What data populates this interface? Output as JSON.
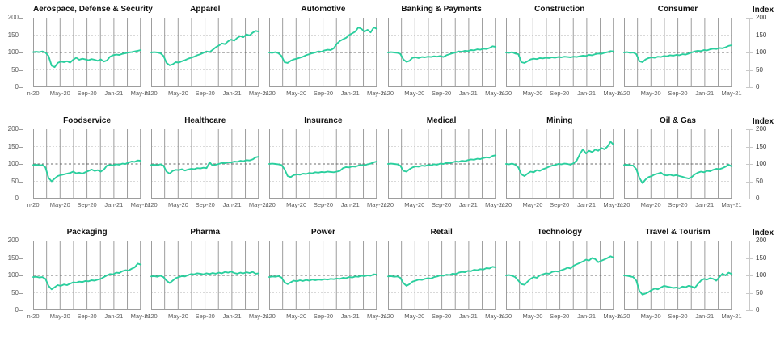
{
  "right_axis_title": "Index",
  "style": {
    "line_color": "#2BCF9E",
    "grid_vertical_color": "#9d9d9d",
    "grid_light_color": "#d9d9d9",
    "ref_line_color": "#6b6b6b",
    "tick_label_color": "#595959"
  },
  "chart_data": {
    "type": "line",
    "note": "small-multiples of weekly sector indices, Jan-2020 to May-2021, baseline 100",
    "ylim": [
      0,
      200
    ],
    "y_ticks": [
      "200",
      "150",
      "100",
      "50",
      "0"
    ],
    "x_ticks": [
      "n-20",
      "May-20",
      "Sep-20",
      "Jan-21",
      "May-21"
    ],
    "ref_line": 100,
    "light_gridlines": [
      150,
      50
    ],
    "vertical_gridlines": 9,
    "legend_position": "none",
    "right_axis_label": "Index",
    "rows": [
      [
        0,
        1,
        2,
        3,
        4,
        5
      ],
      [
        6,
        7,
        8,
        9,
        10,
        11
      ],
      [
        12,
        13,
        14,
        15,
        16,
        17
      ]
    ],
    "charts": [
      {
        "title": "Aerospace, Defense & Security",
        "values": [
          101,
          102,
          101,
          103,
          100,
          90,
          62,
          58,
          70,
          74,
          72,
          75,
          71,
          79,
          85,
          79,
          82,
          80,
          78,
          81,
          79,
          76,
          80,
          74,
          77,
          88,
          92,
          94,
          93,
          96,
          98,
          100,
          101,
          103,
          105,
          107
        ]
      },
      {
        "title": "Apparel",
        "values": [
          100,
          101,
          100,
          98,
          90,
          70,
          63,
          66,
          72,
          71,
          75,
          78,
          82,
          85,
          88,
          92,
          95,
          99,
          103,
          101,
          108,
          115,
          120,
          126,
          124,
          132,
          137,
          134,
          142,
          147,
          144,
          152,
          149,
          157,
          162,
          160
        ]
      },
      {
        "title": "Automotive",
        "values": [
          100,
          99,
          101,
          98,
          90,
          72,
          70,
          76,
          80,
          82,
          85,
          88,
          92,
          95,
          98,
          100,
          103,
          102,
          106,
          108,
          107,
          112,
          125,
          133,
          138,
          142,
          150,
          155,
          160,
          172,
          168,
          160,
          165,
          158,
          172,
          168
        ]
      },
      {
        "title": "Banking & Payments",
        "values": [
          100,
          101,
          100,
          99,
          96,
          80,
          73,
          76,
          85,
          86,
          84,
          87,
          86,
          88,
          87,
          89,
          88,
          90,
          87,
          92,
          95,
          98,
          100,
          103,
          102,
          105,
          104,
          107,
          106,
          109,
          108,
          111,
          110,
          113,
          118,
          116
        ]
      },
      {
        "title": "Construction",
        "values": [
          100,
          99,
          101,
          97,
          95,
          72,
          70,
          75,
          80,
          82,
          81,
          84,
          83,
          85,
          84,
          86,
          85,
          87,
          86,
          88,
          87,
          86,
          88,
          87,
          89,
          91,
          90,
          93,
          92,
          95,
          97,
          96,
          99,
          101,
          104,
          103
        ]
      },
      {
        "title": "Consumer",
        "values": [
          100,
          101,
          99,
          100,
          95,
          75,
          72,
          80,
          84,
          86,
          85,
          88,
          87,
          90,
          89,
          92,
          91,
          93,
          92,
          95,
          94,
          97,
          100,
          103,
          105,
          104,
          107,
          106,
          109,
          111,
          110,
          113,
          112,
          115,
          119,
          121
        ]
      },
      {
        "title": "Foodservice",
        "values": [
          97,
          98,
          96,
          97,
          90,
          60,
          50,
          58,
          65,
          68,
          70,
          72,
          74,
          78,
          73,
          75,
          72,
          76,
          80,
          84,
          80,
          82,
          78,
          84,
          95,
          97,
          96,
          99,
          98,
          101,
          100,
          104,
          107,
          106,
          110,
          109
        ]
      },
      {
        "title": "Healthcare",
        "values": [
          97,
          98,
          96,
          99,
          95,
          78,
          72,
          80,
          83,
          82,
          85,
          81,
          84,
          86,
          85,
          88,
          87,
          89,
          88,
          105,
          95,
          98,
          100,
          103,
          102,
          105,
          104,
          107,
          106,
          109,
          108,
          111,
          110,
          113,
          119,
          121
        ]
      },
      {
        "title": "Insurance",
        "values": [
          100,
          101,
          100,
          99,
          97,
          85,
          65,
          62,
          68,
          70,
          69,
          72,
          71,
          74,
          73,
          76,
          75,
          77,
          76,
          78,
          77,
          76,
          78,
          80,
          88,
          91,
          90,
          93,
          92,
          95,
          97,
          96,
          99,
          101,
          105,
          107
        ]
      },
      {
        "title": "Medical",
        "values": [
          100,
          101,
          100,
          99,
          95,
          80,
          78,
          85,
          90,
          93,
          92,
          95,
          94,
          97,
          96,
          99,
          98,
          101,
          100,
          103,
          102,
          105,
          107,
          106,
          109,
          108,
          111,
          113,
          112,
          115,
          114,
          117,
          119,
          118,
          123,
          125
        ]
      },
      {
        "title": "Mining",
        "values": [
          100,
          99,
          101,
          98,
          90,
          70,
          65,
          72,
          78,
          76,
          82,
          80,
          85,
          88,
          92,
          95,
          97,
          100,
          99,
          101,
          100,
          98,
          102,
          110,
          128,
          142,
          130,
          138,
          134,
          141,
          138,
          146,
          142,
          150,
          164,
          155
        ]
      },
      {
        "title": "Oil & Gas",
        "values": [
          97,
          98,
          96,
          95,
          85,
          60,
          45,
          55,
          62,
          65,
          70,
          72,
          75,
          68,
          67,
          69,
          66,
          68,
          65,
          63,
          60,
          58,
          62,
          70,
          75,
          78,
          76,
          80,
          79,
          83,
          86,
          85,
          88,
          92,
          98,
          93
        ]
      },
      {
        "title": "Packaging",
        "values": [
          95,
          96,
          94,
          95,
          90,
          70,
          60,
          66,
          72,
          70,
          74,
          72,
          76,
          80,
          79,
          82,
          81,
          84,
          83,
          86,
          85,
          88,
          90,
          95,
          100,
          104,
          103,
          108,
          107,
          112,
          115,
          114,
          119,
          123,
          134,
          131
        ]
      },
      {
        "title": "Pharma",
        "values": [
          97,
          98,
          96,
          99,
          95,
          85,
          78,
          85,
          92,
          95,
          98,
          97,
          101,
          104,
          103,
          106,
          105,
          103,
          106,
          104,
          107,
          105,
          108,
          106,
          110,
          108,
          111,
          107,
          105,
          108,
          106,
          109,
          107,
          110,
          105,
          106
        ]
      },
      {
        "title": "Power",
        "values": [
          95,
          97,
          96,
          98,
          94,
          80,
          75,
          80,
          85,
          83,
          86,
          84,
          87,
          85,
          88,
          86,
          88,
          87,
          89,
          88,
          90,
          89,
          91,
          90,
          93,
          92,
          95,
          94,
          97,
          96,
          99,
          98,
          100,
          99,
          103,
          102
        ]
      },
      {
        "title": "Retail",
        "values": [
          97,
          98,
          96,
          97,
          93,
          78,
          70,
          75,
          82,
          85,
          88,
          87,
          90,
          92,
          91,
          95,
          97,
          100,
          99,
          102,
          101,
          105,
          104,
          108,
          110,
          109,
          113,
          112,
          116,
          115,
          118,
          117,
          121,
          120,
          125,
          123
        ]
      },
      {
        "title": "Technology",
        "values": [
          100,
          101,
          99,
          95,
          85,
          75,
          73,
          82,
          90,
          95,
          93,
          100,
          103,
          106,
          105,
          110,
          112,
          111,
          115,
          118,
          122,
          120,
          128,
          132,
          136,
          140,
          145,
          143,
          150,
          147,
          138,
          142,
          146,
          150,
          155,
          151
        ]
      },
      {
        "title": "Travel & Tourism",
        "values": [
          100,
          99,
          97,
          95,
          85,
          55,
          45,
          48,
          52,
          58,
          62,
          60,
          65,
          70,
          68,
          66,
          64,
          65,
          63,
          68,
          66,
          70,
          68,
          64,
          75,
          85,
          90,
          88,
          92,
          90,
          85,
          95,
          105,
          100,
          108,
          104
        ]
      }
    ]
  }
}
